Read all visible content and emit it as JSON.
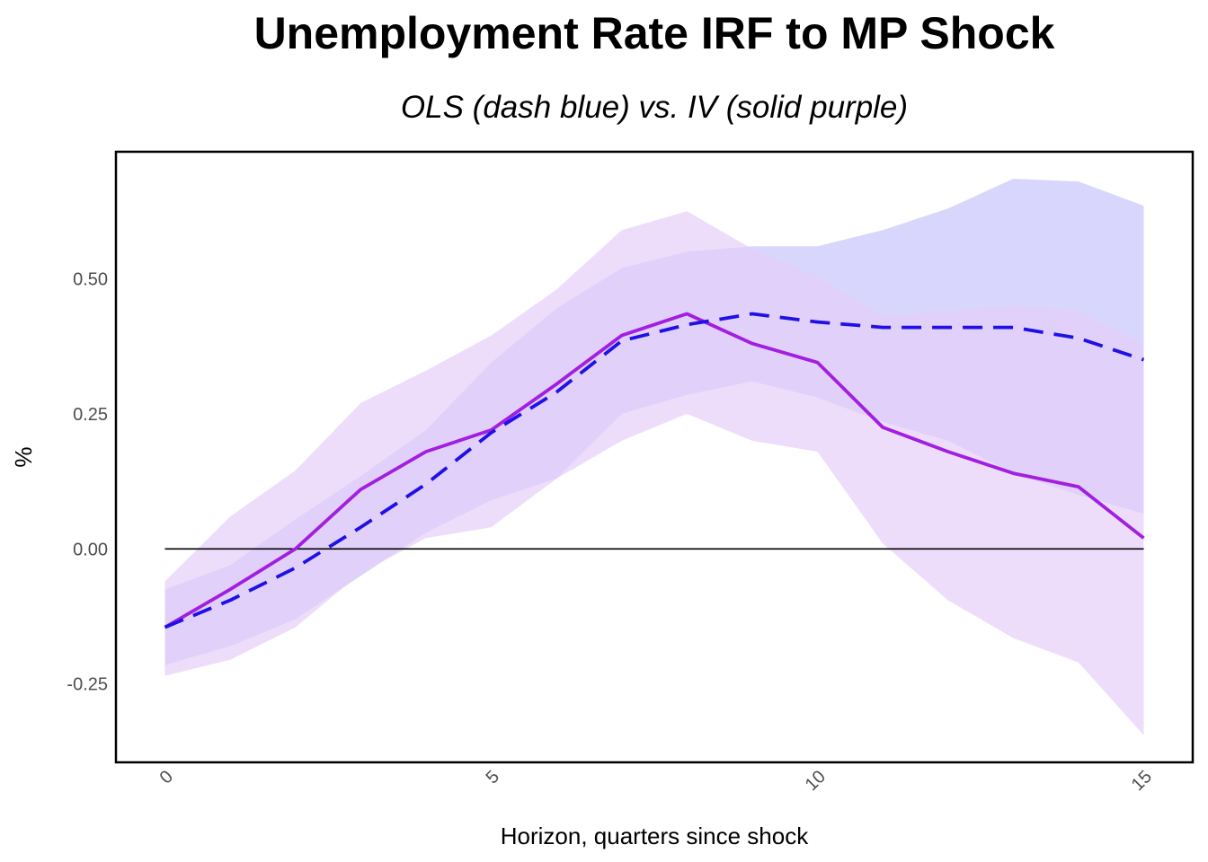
{
  "chart_data": {
    "type": "line",
    "title": "Unemployment Rate IRF to MP Shock",
    "subtitle": "OLS (dash blue) vs. IV (solid purple)",
    "xlabel": "Horizon, quarters since shock",
    "ylabel": "%",
    "xlim": [
      -0.75,
      15.75
    ],
    "ylim": [
      -0.395,
      0.735
    ],
    "x_ticks": [
      0,
      5,
      10,
      15
    ],
    "y_ticks": [
      -0.25,
      0.0,
      0.25,
      0.5
    ],
    "y_tick_labels": [
      "-0.25",
      "0.00",
      "0.25",
      "0.50"
    ],
    "grid": false,
    "zero_line": 0,
    "x": [
      0,
      1,
      2,
      3,
      4,
      5,
      6,
      7,
      8,
      9,
      10,
      11,
      12,
      13,
      14,
      15
    ],
    "series": [
      {
        "style": "dashed",
        "color": "#1f10e8",
        "band_color": "#c7c4fb",
        "values": [
          -0.145,
          -0.095,
          -0.035,
          0.04,
          0.12,
          0.215,
          0.29,
          0.385,
          0.415,
          0.435,
          0.42,
          0.41,
          0.41,
          0.41,
          0.39,
          0.35
        ],
        "lower": [
          -0.215,
          -0.18,
          -0.13,
          -0.05,
          0.03,
          0.09,
          0.13,
          0.25,
          0.285,
          0.31,
          0.28,
          0.235,
          0.2,
          0.14,
          0.1,
          0.065
        ],
        "upper": [
          -0.075,
          -0.03,
          0.055,
          0.135,
          0.22,
          0.345,
          0.445,
          0.52,
          0.55,
          0.56,
          0.56,
          0.59,
          0.63,
          0.685,
          0.68,
          0.635
        ]
      },
      {
        "style": "solid",
        "color": "#a21fe0",
        "band_color": "#e6cff9",
        "values": [
          -0.145,
          -0.075,
          0.0,
          0.11,
          0.18,
          0.22,
          0.305,
          0.395,
          0.435,
          0.38,
          0.345,
          0.225,
          0.18,
          0.14,
          0.115,
          0.02
        ],
        "lower": [
          -0.235,
          -0.205,
          -0.145,
          -0.045,
          0.02,
          0.04,
          0.13,
          0.2,
          0.25,
          0.2,
          0.18,
          0.01,
          -0.095,
          -0.165,
          -0.21,
          -0.345
        ],
        "upper": [
          -0.06,
          0.06,
          0.145,
          0.27,
          0.33,
          0.395,
          0.48,
          0.59,
          0.625,
          0.555,
          0.505,
          0.43,
          0.44,
          0.45,
          0.44,
          0.38
        ]
      }
    ]
  }
}
